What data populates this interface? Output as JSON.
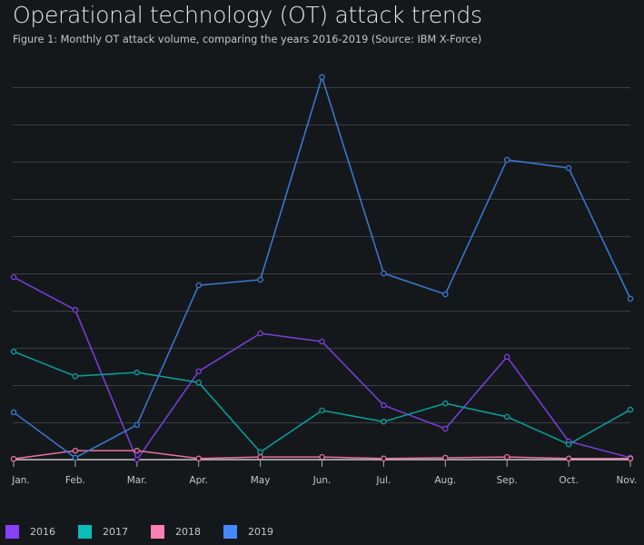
{
  "chart_data": {
    "type": "line",
    "title": "Operational technology (OT) attack trends",
    "subtitle": "Figure 1: Monthly OT attack volume, comparing the years 2016-2019 (Source: IBM X-Force)",
    "xlabel": "",
    "ylabel": "",
    "categories": [
      "Jan.",
      "Feb.",
      "Mar.",
      "Apr.",
      "May",
      "Jun.",
      "Jul.",
      "Aug.",
      "Sep.",
      "Oct.",
      "Nov."
    ],
    "ylim": [
      0,
      10
    ],
    "grid": true,
    "legend": "bottom-left",
    "series": [
      {
        "name": "2016",
        "color": "#8a3ffc",
        "values": [
          4.9,
          4.02,
          0,
          2.37,
          3.39,
          3.17,
          1.46,
          0.83,
          2.76,
          0.49,
          0.05
        ]
      },
      {
        "name": "2017",
        "color": "#08bdba",
        "values": [
          2.9,
          2.24,
          2.34,
          2.07,
          0.2,
          1.32,
          1.02,
          1.51,
          1.15,
          0.41,
          1.34
        ]
      },
      {
        "name": "2018",
        "color": "#ff7eb6",
        "values": [
          0.02,
          0.24,
          0.24,
          0.03,
          0.07,
          0.07,
          0.03,
          0.05,
          0.07,
          0.03,
          0.03
        ]
      },
      {
        "name": "2019",
        "color": "#4589ff",
        "values": [
          1.27,
          0.05,
          0.93,
          4.68,
          4.83,
          10.27,
          5.0,
          4.44,
          8.05,
          7.83,
          4.32
        ]
      }
    ]
  }
}
